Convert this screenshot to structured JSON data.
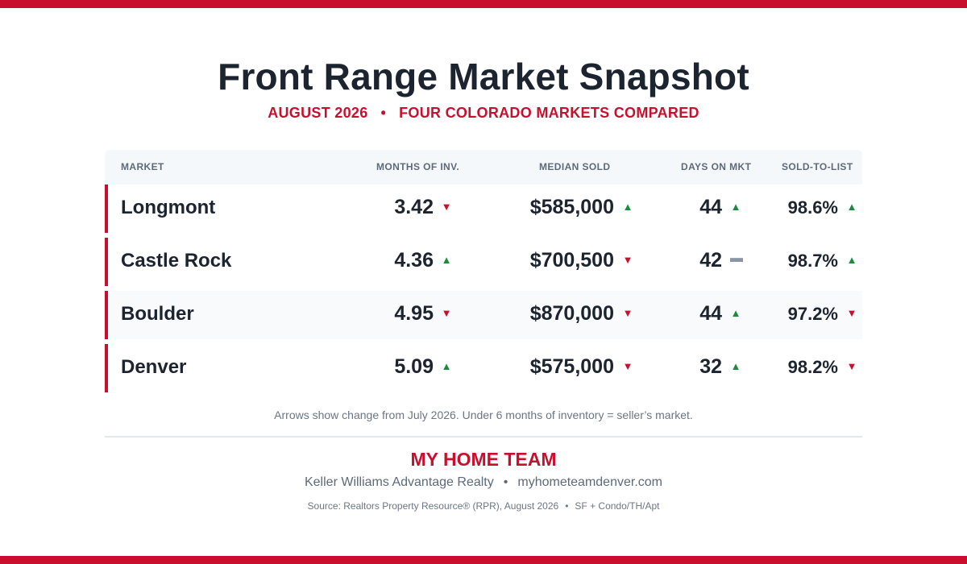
{
  "header": {
    "title": "Front Range Market Snapshot",
    "subtitle_left": "AUGUST 2026",
    "subtitle_sep": "•",
    "subtitle_right": "FOUR COLORADO MARKETS COMPARED"
  },
  "table": {
    "columns": {
      "market": "MARKET",
      "inventory": "MONTHS OF INV.",
      "median": "MEDIAN SOLD",
      "dom": "DAYS ON MKT",
      "stl": "SOLD-TO-LIST"
    },
    "rows": [
      {
        "market": "Longmont",
        "inventory": "3.42",
        "inventory_trend": "▼",
        "median": "$585,000",
        "median_trend": "▲",
        "dom": "44",
        "dom_trend": "▲",
        "stl": "98.6%",
        "stl_trend": "▲"
      },
      {
        "market": "Castle Rock",
        "inventory": "4.36",
        "inventory_trend": "▲",
        "median": "$700,500",
        "median_trend": "▼",
        "dom": "42",
        "dom_trend": "▬",
        "stl": "98.7%",
        "stl_trend": "▲"
      },
      {
        "market": "Boulder",
        "inventory": "4.95",
        "inventory_trend": "▼",
        "median": "$870,000",
        "median_trend": "▼",
        "dom": "44",
        "dom_trend": "▲",
        "stl": "97.2%",
        "stl_trend": "▼"
      },
      {
        "market": "Denver",
        "inventory": "5.09",
        "inventory_trend": "▲",
        "median": "$575,000",
        "median_trend": "▼",
        "dom": "32",
        "dom_trend": "▲",
        "stl": "98.2%",
        "stl_trend": "▼"
      }
    ]
  },
  "note": "Arrows show change from July 2026.  Under 6 months of inventory = seller’s market.",
  "footer": {
    "brand": "MY HOME TEAM",
    "company": "Keller Williams Advantage Realty",
    "sep": "•",
    "website": "myhometeamdenver.com",
    "source": "Source: Realtors Property Resource® (RPR), August 2026",
    "source_extra": "SF + Condo/TH/Apt"
  },
  "colors": {
    "accent": "#c8102e",
    "text": "#1c2430",
    "up": "#1e8a3c",
    "down": "#c8102e",
    "flat": "#8a95a3"
  }
}
